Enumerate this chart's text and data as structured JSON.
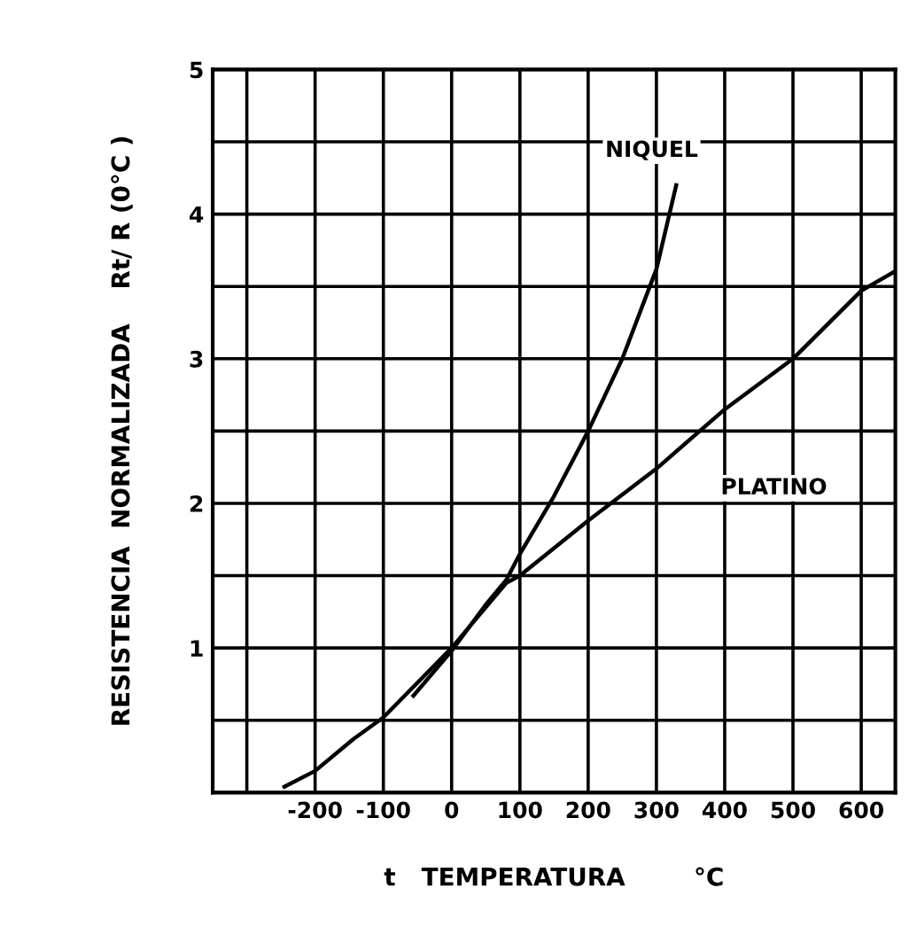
{
  "chart_data": {
    "type": "line",
    "xlabel": "t   TEMPERATURA        °C",
    "ylabel": "RESISTENCIA  NORMALIZADA    Rt/ R (0°C )",
    "series": [
      {
        "name": "NIQUEL",
        "color": "#000000",
        "x": [
          -56,
          0,
          50,
          80,
          100,
          150,
          200,
          250,
          300,
          329
        ],
        "values": [
          0.67,
          0.98,
          1.3,
          1.47,
          1.65,
          2.05,
          2.5,
          3.0,
          3.62,
          4.2
        ]
      },
      {
        "name": "PLATINO",
        "color": "#000000",
        "x": [
          -245,
          -200,
          -144,
          -100,
          0,
          80,
          100,
          200,
          300,
          400,
          500,
          600,
          648
        ],
        "values": [
          0.04,
          0.15,
          0.37,
          0.52,
          1.0,
          1.45,
          1.5,
          1.88,
          2.24,
          2.65,
          3.0,
          3.47,
          3.6
        ]
      }
    ],
    "xlim": [
      -350,
      650
    ],
    "xticks": [
      {
        "value": -300,
        "label": null
      },
      -200,
      -100,
      0,
      100,
      200,
      300,
      400,
      500,
      600
    ],
    "ylim": [
      0,
      5
    ],
    "yticks": [
      {
        "value": 0,
        "label": null
      },
      {
        "value": 0.5,
        "label": null
      },
      1,
      {
        "value": 1.5,
        "label": null
      },
      2,
      {
        "value": 2.5,
        "label": null
      },
      3,
      {
        "value": 3.5,
        "label": null
      },
      4,
      {
        "value": 4.5,
        "label": null
      },
      5
    ],
    "grid": true,
    "legend": false,
    "marker": "none",
    "line_style": "solid"
  }
}
